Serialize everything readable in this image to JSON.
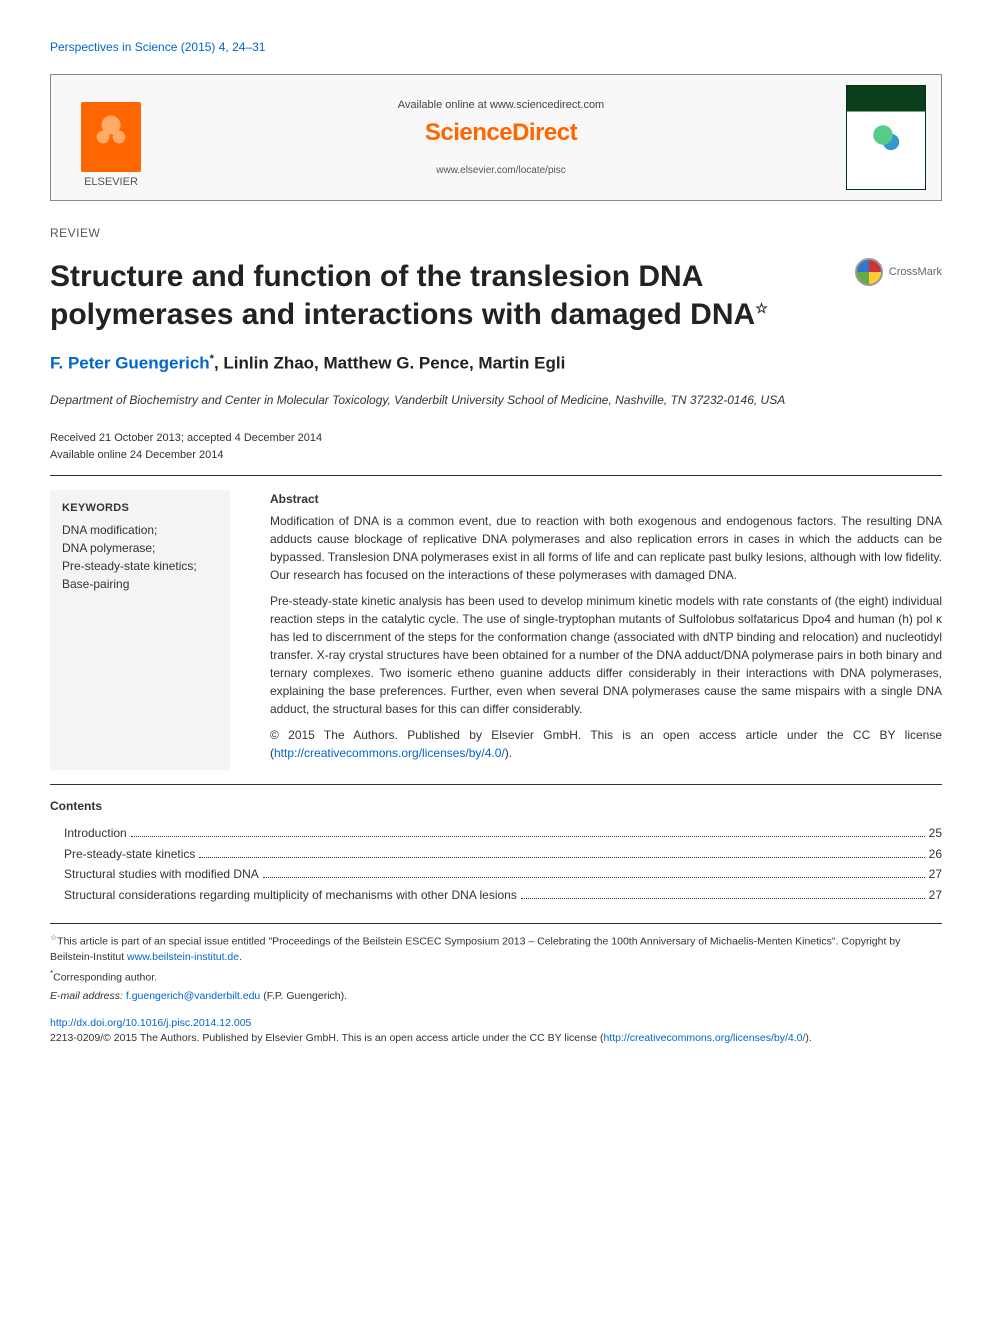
{
  "journal_ref": "Perspectives in Science (2015) 4, 24–31",
  "header": {
    "available_text": "Available online at www.sciencedirect.com",
    "brand": "ScienceDirect",
    "locate_url": "www.elsevier.com/locate/pisc",
    "publisher": "ELSEVIER"
  },
  "article": {
    "section_label": "REVIEW",
    "title": "Structure and function of the translesion DNA polymerases and interactions with damaged DNA",
    "title_footnote_marker": "☆",
    "crossmark_label": "CrossMark",
    "authors_html": "F. Peter Guengerich",
    "authors_rest": ", Linlin Zhao, Matthew G. Pence, Martin Egli",
    "corr_marker": "*",
    "affiliation": "Department of Biochemistry and Center in Molecular Toxicology, Vanderbilt University School of Medicine, Nashville, TN 37232-0146, USA",
    "received": "Received 21 October 2013; accepted 4 December 2014",
    "online": "Available online 24 December 2014"
  },
  "keywords": {
    "heading": "KEYWORDS",
    "items": [
      "DNA modification;",
      "DNA polymerase;",
      "Pre-steady-state kinetics;",
      "Base-pairing"
    ]
  },
  "abstract": {
    "heading": "Abstract",
    "p1": "Modification of DNA is a common event, due to reaction with both exogenous and endogenous factors. The resulting DNA adducts cause blockage of replicative DNA polymerases and also replication errors in cases in which the adducts can be bypassed. Translesion DNA polymerases exist in all forms of life and can replicate past bulky lesions, although with low fidelity. Our research has focused on the interactions of these polymerases with damaged DNA.",
    "p2": "Pre-steady-state kinetic analysis has been used to develop minimum kinetic models with rate constants of (the eight) individual reaction steps in the catalytic cycle. The use of single-tryptophan mutants of Sulfolobus solfataricus Dpo4 and human (h) pol κ has led to discernment of the steps for the conformation change (associated with dNTP binding and relocation) and nucleotidyl transfer. X-ray crystal structures have been obtained for a number of the DNA adduct/DNA polymerase pairs in both binary and ternary complexes. Two isomeric etheno guanine adducts differ considerably in their interactions with DNA polymerases, explaining the base preferences. Further, even when several DNA polymerases cause the same mispairs with a single DNA adduct, the structural bases for this can differ considerably.",
    "copyright": "© 2015 The Authors. Published by Elsevier GmbH. This is an open access article under the CC BY license (",
    "license_url": "http://creativecommons.org/licenses/by/4.0/",
    "copyright_end": ")."
  },
  "contents": {
    "heading": "Contents",
    "rows": [
      {
        "label": "Introduction",
        "page": "25"
      },
      {
        "label": "Pre-steady-state kinetics",
        "page": "26"
      },
      {
        "label": "Structural studies with modified DNA",
        "page": "27"
      },
      {
        "label": "Structural considerations regarding multiplicity of mechanisms with other DNA lesions",
        "page": "27"
      }
    ]
  },
  "footnotes": {
    "star": "This article is part of an special issue entitled \"Proceedings of the Beilstein ESCEC Symposium 2013 – Celebrating the 100th Anniversary of Michaelis-Menten Kinetics\". Copyright by Beilstein-Institut ",
    "star_link": "www.beilstein-institut.de",
    "star_end": ".",
    "corr": "Corresponding author.",
    "email_label": "E-mail address: ",
    "email": "f.guengerich@vanderbilt.edu",
    "email_after": " (F.P. Guengerich)."
  },
  "doi": {
    "url": "http://dx.doi.org/10.1016/j.pisc.2014.12.005",
    "issn_line": "2213-0209/© 2015 The Authors. Published by Elsevier GmbH. This is an open access article under the CC BY license (",
    "license_url": "http://creativecommons.org/licenses/by/4.0/",
    "end": ")."
  }
}
